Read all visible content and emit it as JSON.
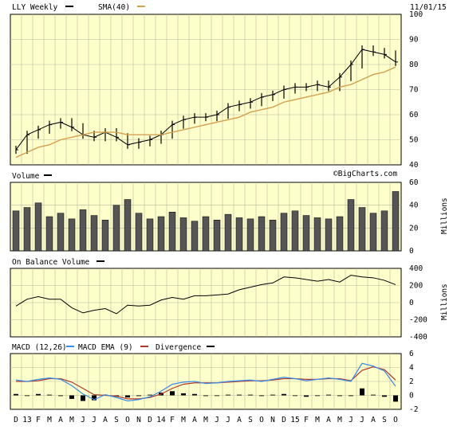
{
  "header": {
    "ticker_label": "LLY Weekly",
    "sma_label": "SMA(40)",
    "date": "11/01/15",
    "watermark": "©BigCharts.com"
  },
  "colors": {
    "panel_bg": "#ffffcc",
    "grid": "#b8b8a0",
    "sma": "#d4a050",
    "macd": "#3a8ee6",
    "ema": "#b03a2e",
    "bars": "#000000"
  },
  "x_axis": {
    "tick_labels": [
      "D",
      "13",
      "F",
      "M",
      "A",
      "M",
      "J",
      "J",
      "A",
      "S",
      "O",
      "N",
      "D",
      "14",
      "F",
      "M",
      "A",
      "M",
      "J",
      "J",
      "A",
      "S",
      "O",
      "N",
      "D",
      "15",
      "F",
      "M",
      "A",
      "M",
      "J",
      "J",
      "A",
      "S",
      "O"
    ],
    "start": "2012-12",
    "end": "2015-10"
  },
  "chart_data": [
    {
      "type": "line",
      "title": "LLY Weekly",
      "legend": [
        "LLY Weekly",
        "SMA(40)"
      ],
      "ylim": [
        40,
        100
      ],
      "y_ticks": [
        40,
        50,
        60,
        70,
        80,
        90,
        100
      ],
      "x_ticks": [
        "D",
        "13",
        "F",
        "M",
        "A",
        "M",
        "J",
        "J",
        "A",
        "S",
        "O",
        "N",
        "D",
        "14",
        "F",
        "M",
        "A",
        "M",
        "J",
        "J",
        "A",
        "S",
        "O",
        "N",
        "D",
        "15",
        "F",
        "M",
        "A",
        "M",
        "J",
        "J",
        "A",
        "S",
        "O"
      ],
      "series": [
        {
          "name": "LLY Weekly",
          "x": [
            "2012-12",
            "2013-01",
            "2013-02",
            "2013-03",
            "2013-04",
            "2013-05",
            "2013-06",
            "2013-07",
            "2013-08",
            "2013-09",
            "2013-10",
            "2013-11",
            "2013-12",
            "2014-01",
            "2014-02",
            "2014-03",
            "2014-04",
            "2014-05",
            "2014-06",
            "2014-07",
            "2014-08",
            "2014-09",
            "2014-10",
            "2014-11",
            "2014-12",
            "2015-01",
            "2015-02",
            "2015-03",
            "2015-04",
            "2015-05",
            "2015-06",
            "2015-07",
            "2015-08",
            "2015-09",
            "2015-10"
          ],
          "values": [
            46,
            52,
            54,
            56,
            57,
            55,
            52,
            51,
            53,
            51,
            48,
            49,
            50,
            52,
            56,
            58,
            59,
            59,
            60,
            63,
            64,
            65,
            67,
            68,
            70,
            71,
            71,
            72,
            71,
            75,
            80,
            86,
            85,
            84,
            81
          ]
        },
        {
          "name": "SMA(40)",
          "x": [
            "2012-12",
            "2013-01",
            "2013-02",
            "2013-03",
            "2013-04",
            "2013-05",
            "2013-06",
            "2013-07",
            "2013-08",
            "2013-09",
            "2013-10",
            "2013-11",
            "2013-12",
            "2014-01",
            "2014-02",
            "2014-03",
            "2014-04",
            "2014-05",
            "2014-06",
            "2014-07",
            "2014-08",
            "2014-09",
            "2014-10",
            "2014-11",
            "2014-12",
            "2015-01",
            "2015-02",
            "2015-03",
            "2015-04",
            "2015-05",
            "2015-06",
            "2015-07",
            "2015-08",
            "2015-09",
            "2015-10"
          ],
          "values": [
            43,
            45,
            47,
            48,
            50,
            51,
            52,
            53,
            53,
            53,
            52,
            52,
            52,
            52,
            53,
            54,
            55,
            56,
            57,
            58,
            59,
            61,
            62,
            63,
            65,
            66,
            67,
            68,
            69,
            71,
            72,
            74,
            76,
            77,
            79
          ]
        }
      ]
    },
    {
      "type": "bar",
      "title": "Volume",
      "ylabel": "Millions",
      "ylim": [
        0,
        60
      ],
      "y_ticks": [
        0,
        20,
        40,
        60
      ],
      "series": [
        {
          "name": "Volume",
          "x": [
            "2012-12",
            "2013-01",
            "2013-02",
            "2013-03",
            "2013-04",
            "2013-05",
            "2013-06",
            "2013-07",
            "2013-08",
            "2013-09",
            "2013-10",
            "2013-11",
            "2013-12",
            "2014-01",
            "2014-02",
            "2014-03",
            "2014-04",
            "2014-05",
            "2014-06",
            "2014-07",
            "2014-08",
            "2014-09",
            "2014-10",
            "2014-11",
            "2014-12",
            "2015-01",
            "2015-02",
            "2015-03",
            "2015-04",
            "2015-05",
            "2015-06",
            "2015-07",
            "2015-08",
            "2015-09",
            "2015-10"
          ],
          "values": [
            35,
            38,
            42,
            30,
            33,
            28,
            36,
            31,
            27,
            40,
            45,
            33,
            28,
            30,
            34,
            29,
            26,
            30,
            27,
            32,
            29,
            28,
            30,
            27,
            33,
            35,
            31,
            29,
            28,
            30,
            45,
            38,
            33,
            35,
            52
          ]
        }
      ]
    },
    {
      "type": "line",
      "title": "On Balance Volume",
      "ylabel": "Millions",
      "ylim": [
        -400,
        400
      ],
      "y_ticks": [
        -400,
        -200,
        0,
        200,
        400
      ],
      "series": [
        {
          "name": "On Balance Volume",
          "x": [
            "2012-12",
            "2013-01",
            "2013-02",
            "2013-03",
            "2013-04",
            "2013-05",
            "2013-06",
            "2013-07",
            "2013-08",
            "2013-09",
            "2013-10",
            "2013-11",
            "2013-12",
            "2014-01",
            "2014-02",
            "2014-03",
            "2014-04",
            "2014-05",
            "2014-06",
            "2014-07",
            "2014-08",
            "2014-09",
            "2014-10",
            "2014-11",
            "2014-12",
            "2015-01",
            "2015-02",
            "2015-03",
            "2015-04",
            "2015-05",
            "2015-06",
            "2015-07",
            "2015-08",
            "2015-09",
            "2015-10"
          ],
          "values": [
            -40,
            40,
            70,
            40,
            40,
            -60,
            -120,
            -90,
            -70,
            -130,
            -30,
            -40,
            -30,
            30,
            60,
            40,
            80,
            80,
            90,
            100,
            150,
            180,
            210,
            230,
            300,
            290,
            270,
            250,
            270,
            240,
            320,
            300,
            290,
            260,
            210
          ]
        }
      ]
    },
    {
      "type": "line",
      "title": "MACD (12,26)",
      "legend": [
        "MACD (12,26)",
        "MACD EMA (9)",
        "Divergence"
      ],
      "ylim": [
        -2,
        6
      ],
      "y_ticks": [
        -2,
        0,
        2,
        4,
        6
      ],
      "series": [
        {
          "name": "MACD (12,26)",
          "x": [
            "2012-12",
            "2013-01",
            "2013-02",
            "2013-03",
            "2013-04",
            "2013-05",
            "2013-06",
            "2013-07",
            "2013-08",
            "2013-09",
            "2013-10",
            "2013-11",
            "2013-12",
            "2014-01",
            "2014-02",
            "2014-03",
            "2014-04",
            "2014-05",
            "2014-06",
            "2014-07",
            "2014-08",
            "2014-09",
            "2014-10",
            "2014-11",
            "2014-12",
            "2015-01",
            "2015-02",
            "2015-03",
            "2015-04",
            "2015-05",
            "2015-06",
            "2015-07",
            "2015-08",
            "2015-09",
            "2015-10"
          ],
          "values": [
            2.2,
            2.0,
            2.3,
            2.5,
            2.3,
            1.4,
            0.2,
            -0.6,
            0.1,
            -0.3,
            -0.8,
            -0.6,
            -0.2,
            0.6,
            1.6,
            1.9,
            2.0,
            1.7,
            1.8,
            2.0,
            2.1,
            2.2,
            2.0,
            2.3,
            2.6,
            2.4,
            2.1,
            2.3,
            2.5,
            2.3,
            2.0,
            4.6,
            4.2,
            3.5,
            1.3
          ]
        },
        {
          "name": "MACD EMA (9)",
          "x": [
            "2012-12",
            "2013-01",
            "2013-02",
            "2013-03",
            "2013-04",
            "2013-05",
            "2013-06",
            "2013-07",
            "2013-08",
            "2013-09",
            "2013-10",
            "2013-11",
            "2013-12",
            "2014-01",
            "2014-02",
            "2014-03",
            "2014-04",
            "2014-05",
            "2014-06",
            "2014-07",
            "2014-08",
            "2014-09",
            "2014-10",
            "2014-11",
            "2014-12",
            "2015-01",
            "2015-02",
            "2015-03",
            "2015-04",
            "2015-05",
            "2015-06",
            "2015-07",
            "2015-08",
            "2015-09",
            "2015-10"
          ],
          "values": [
            2.0,
            2.0,
            2.1,
            2.4,
            2.4,
            1.9,
            1.0,
            0.1,
            0.0,
            -0.1,
            -0.5,
            -0.5,
            -0.3,
            0.2,
            1.0,
            1.6,
            1.8,
            1.8,
            1.8,
            1.9,
            2.0,
            2.1,
            2.1,
            2.2,
            2.4,
            2.4,
            2.3,
            2.3,
            2.4,
            2.4,
            2.1,
            3.6,
            4.1,
            3.7,
            2.2
          ]
        },
        {
          "name": "Divergence",
          "x": [
            "2012-12",
            "2013-01",
            "2013-02",
            "2013-03",
            "2013-04",
            "2013-05",
            "2013-06",
            "2013-07",
            "2013-08",
            "2013-09",
            "2013-10",
            "2013-11",
            "2013-12",
            "2014-01",
            "2014-02",
            "2014-03",
            "2014-04",
            "2014-05",
            "2014-06",
            "2014-07",
            "2014-08",
            "2014-09",
            "2014-10",
            "2014-11",
            "2014-12",
            "2015-01",
            "2015-02",
            "2015-03",
            "2015-04",
            "2015-05",
            "2015-06",
            "2015-07",
            "2015-08",
            "2015-09",
            "2015-10"
          ],
          "values": [
            0.2,
            0.0,
            0.2,
            0.1,
            -0.1,
            -0.5,
            -0.8,
            -0.7,
            0.1,
            -0.2,
            -0.3,
            -0.1,
            0.1,
            0.4,
            0.6,
            0.3,
            0.2,
            -0.1,
            0.0,
            0.1,
            0.1,
            0.1,
            -0.1,
            0.1,
            0.2,
            0.0,
            -0.2,
            0.0,
            0.1,
            -0.1,
            -0.1,
            1.0,
            0.1,
            -0.2,
            -0.9
          ]
        }
      ]
    }
  ]
}
